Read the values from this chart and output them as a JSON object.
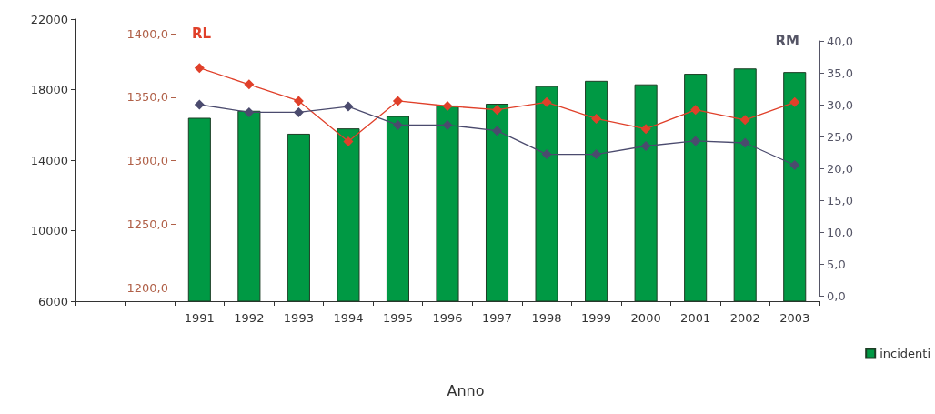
{
  "chart_data": {
    "type": "bar",
    "xlabel": "Anno",
    "y2label": "RL",
    "y3label": "RM",
    "categories": [
      null,
      null,
      "1991",
      "1992",
      "1993",
      "1994",
      "1995",
      "1996",
      "1997",
      "1998",
      "1999",
      "2000",
      "2001",
      "2002",
      "2003"
    ],
    "series": [
      {
        "name": "incidenti",
        "color": "#009944",
        "values": [
          null,
          null,
          16400,
          16800,
          15500,
          15800,
          16500,
          17100,
          17200,
          18200,
          18500,
          18300,
          18900,
          19200,
          19000
        ]
      },
      {
        "type": "line",
        "axis": "y2",
        "color": "#e0402a",
        "values": [
          null,
          null,
          1373,
          1360,
          1347,
          1315,
          1347,
          1343,
          1340,
          1346,
          1333,
          1325,
          1340,
          1332,
          1346
        ]
      },
      {
        "type": "line",
        "axis": "y3",
        "color": "#4b4b6e",
        "values": [
          null,
          null,
          30.0,
          28.8,
          28.8,
          29.7,
          26.8,
          26.8,
          25.9,
          22.2,
          22.2,
          23.5,
          24.3,
          24.0,
          20.5
        ]
      }
    ],
    "ylim": [
      6000,
      22000
    ],
    "yticks": [
      6000,
      10000,
      14000,
      18000,
      22000
    ],
    "y2lim": [
      1200,
      1400
    ],
    "y2ticks": [
      {
        "value": 1200,
        "label": "1200,0"
      },
      {
        "value": 1250,
        "label": "1250,0"
      },
      {
        "value": 1300,
        "label": "1300,0"
      },
      {
        "value": 1350,
        "label": "1350,0"
      },
      {
        "value": 1400,
        "label": "1400,0"
      }
    ],
    "y3lim": [
      0,
      40
    ],
    "y3ticks": [
      {
        "value": 0,
        "label": "0,0"
      },
      {
        "value": 5,
        "label": "5,0"
      },
      {
        "value": 10,
        "label": "10,0"
      },
      {
        "value": 15,
        "label": "15,0"
      },
      {
        "value": 20,
        "label": "20,0"
      },
      {
        "value": 25,
        "label": "25,0"
      },
      {
        "value": 30,
        "label": "30,0"
      },
      {
        "value": 35,
        "label": "35,0"
      },
      {
        "value": 40,
        "label": "40,0"
      }
    ],
    "legend": "bottom right",
    "marker": "diamond",
    "line_style": "solid"
  }
}
